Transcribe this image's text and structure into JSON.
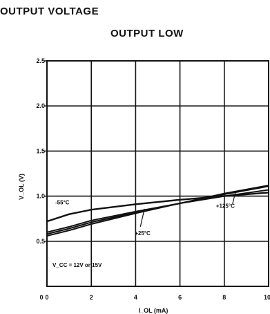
{
  "header": {
    "title": "OUTPUT VOLTAGE",
    "subtitle": "OUTPUT LOW"
  },
  "chart_data": {
    "type": "line",
    "xlabel": "I_OL (mA)",
    "ylabel": "V_OL (V)",
    "xlim": [
      0,
      10
    ],
    "ylim": [
      0,
      2.5
    ],
    "x_ticks": [
      "0",
      "2",
      "4",
      "6",
      "8",
      "10"
    ],
    "y_ticks": [
      "0.5",
      "1.0",
      "1.5",
      "2.0",
      "2.5"
    ],
    "grid": true,
    "condition_label": "V_CC = 12V or 15V",
    "series": [
      {
        "name": "-55°C",
        "label_style": "inline",
        "x": [
          0,
          1,
          2,
          4,
          6,
          8,
          10
        ],
        "y": [
          0.72,
          0.8,
          0.85,
          0.91,
          0.96,
          1.0,
          1.04
        ]
      },
      {
        "name": "",
        "x": [
          0,
          1,
          2,
          4,
          6,
          8,
          10
        ],
        "y": [
          0.6,
          0.66,
          0.73,
          0.83,
          0.92,
          1.0,
          1.07
        ]
      },
      {
        "name": "+25°C",
        "label_style": "leader",
        "x": [
          0,
          1,
          2,
          4,
          6,
          8,
          10
        ],
        "y": [
          0.58,
          0.64,
          0.71,
          0.82,
          0.92,
          1.02,
          1.11
        ]
      },
      {
        "name": "+125°C",
        "label_style": "leader",
        "x": [
          0,
          1,
          2,
          4,
          6,
          8,
          10
        ],
        "y": [
          0.56,
          0.62,
          0.69,
          0.81,
          0.92,
          1.03,
          1.12
        ]
      }
    ],
    "colors": {
      "line": "#111111",
      "grid": "#111111"
    }
  }
}
